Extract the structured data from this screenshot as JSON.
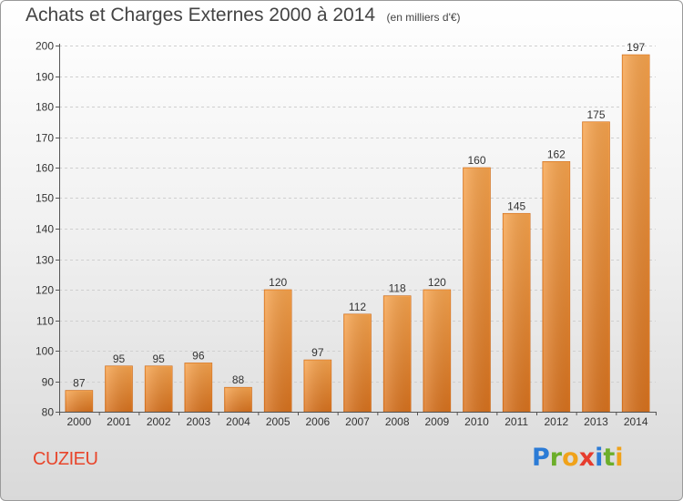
{
  "title": "Achats et Charges Externes 2000 à 2014",
  "subtitle": "(en milliers d'€)",
  "place": "CUZIEU",
  "logo": {
    "text": "Proxiti",
    "colors": [
      "#2b7bd6",
      "#6cae2a",
      "#f0a21a",
      "#e63c2e",
      "#2b7bd6",
      "#6cae2a",
      "#f0a21a"
    ]
  },
  "chart_data": {
    "type": "bar",
    "title": "Achats et Charges Externes 2000 à 2014",
    "subtitle": "(en milliers d'€)",
    "categories": [
      "2000",
      "2001",
      "2002",
      "2003",
      "2004",
      "2005",
      "2006",
      "2007",
      "2008",
      "2009",
      "2010",
      "2011",
      "2012",
      "2013",
      "2014"
    ],
    "values": [
      87,
      95,
      95,
      96,
      88,
      120,
      97,
      112,
      118,
      120,
      160,
      145,
      162,
      175,
      197
    ],
    "ylim": [
      80,
      200
    ],
    "yticks": [
      80,
      90,
      100,
      110,
      120,
      130,
      140,
      150,
      160,
      170,
      180,
      190,
      200
    ],
    "grid": true,
    "bar_color": "#f09a3e",
    "data_labels": true
  }
}
